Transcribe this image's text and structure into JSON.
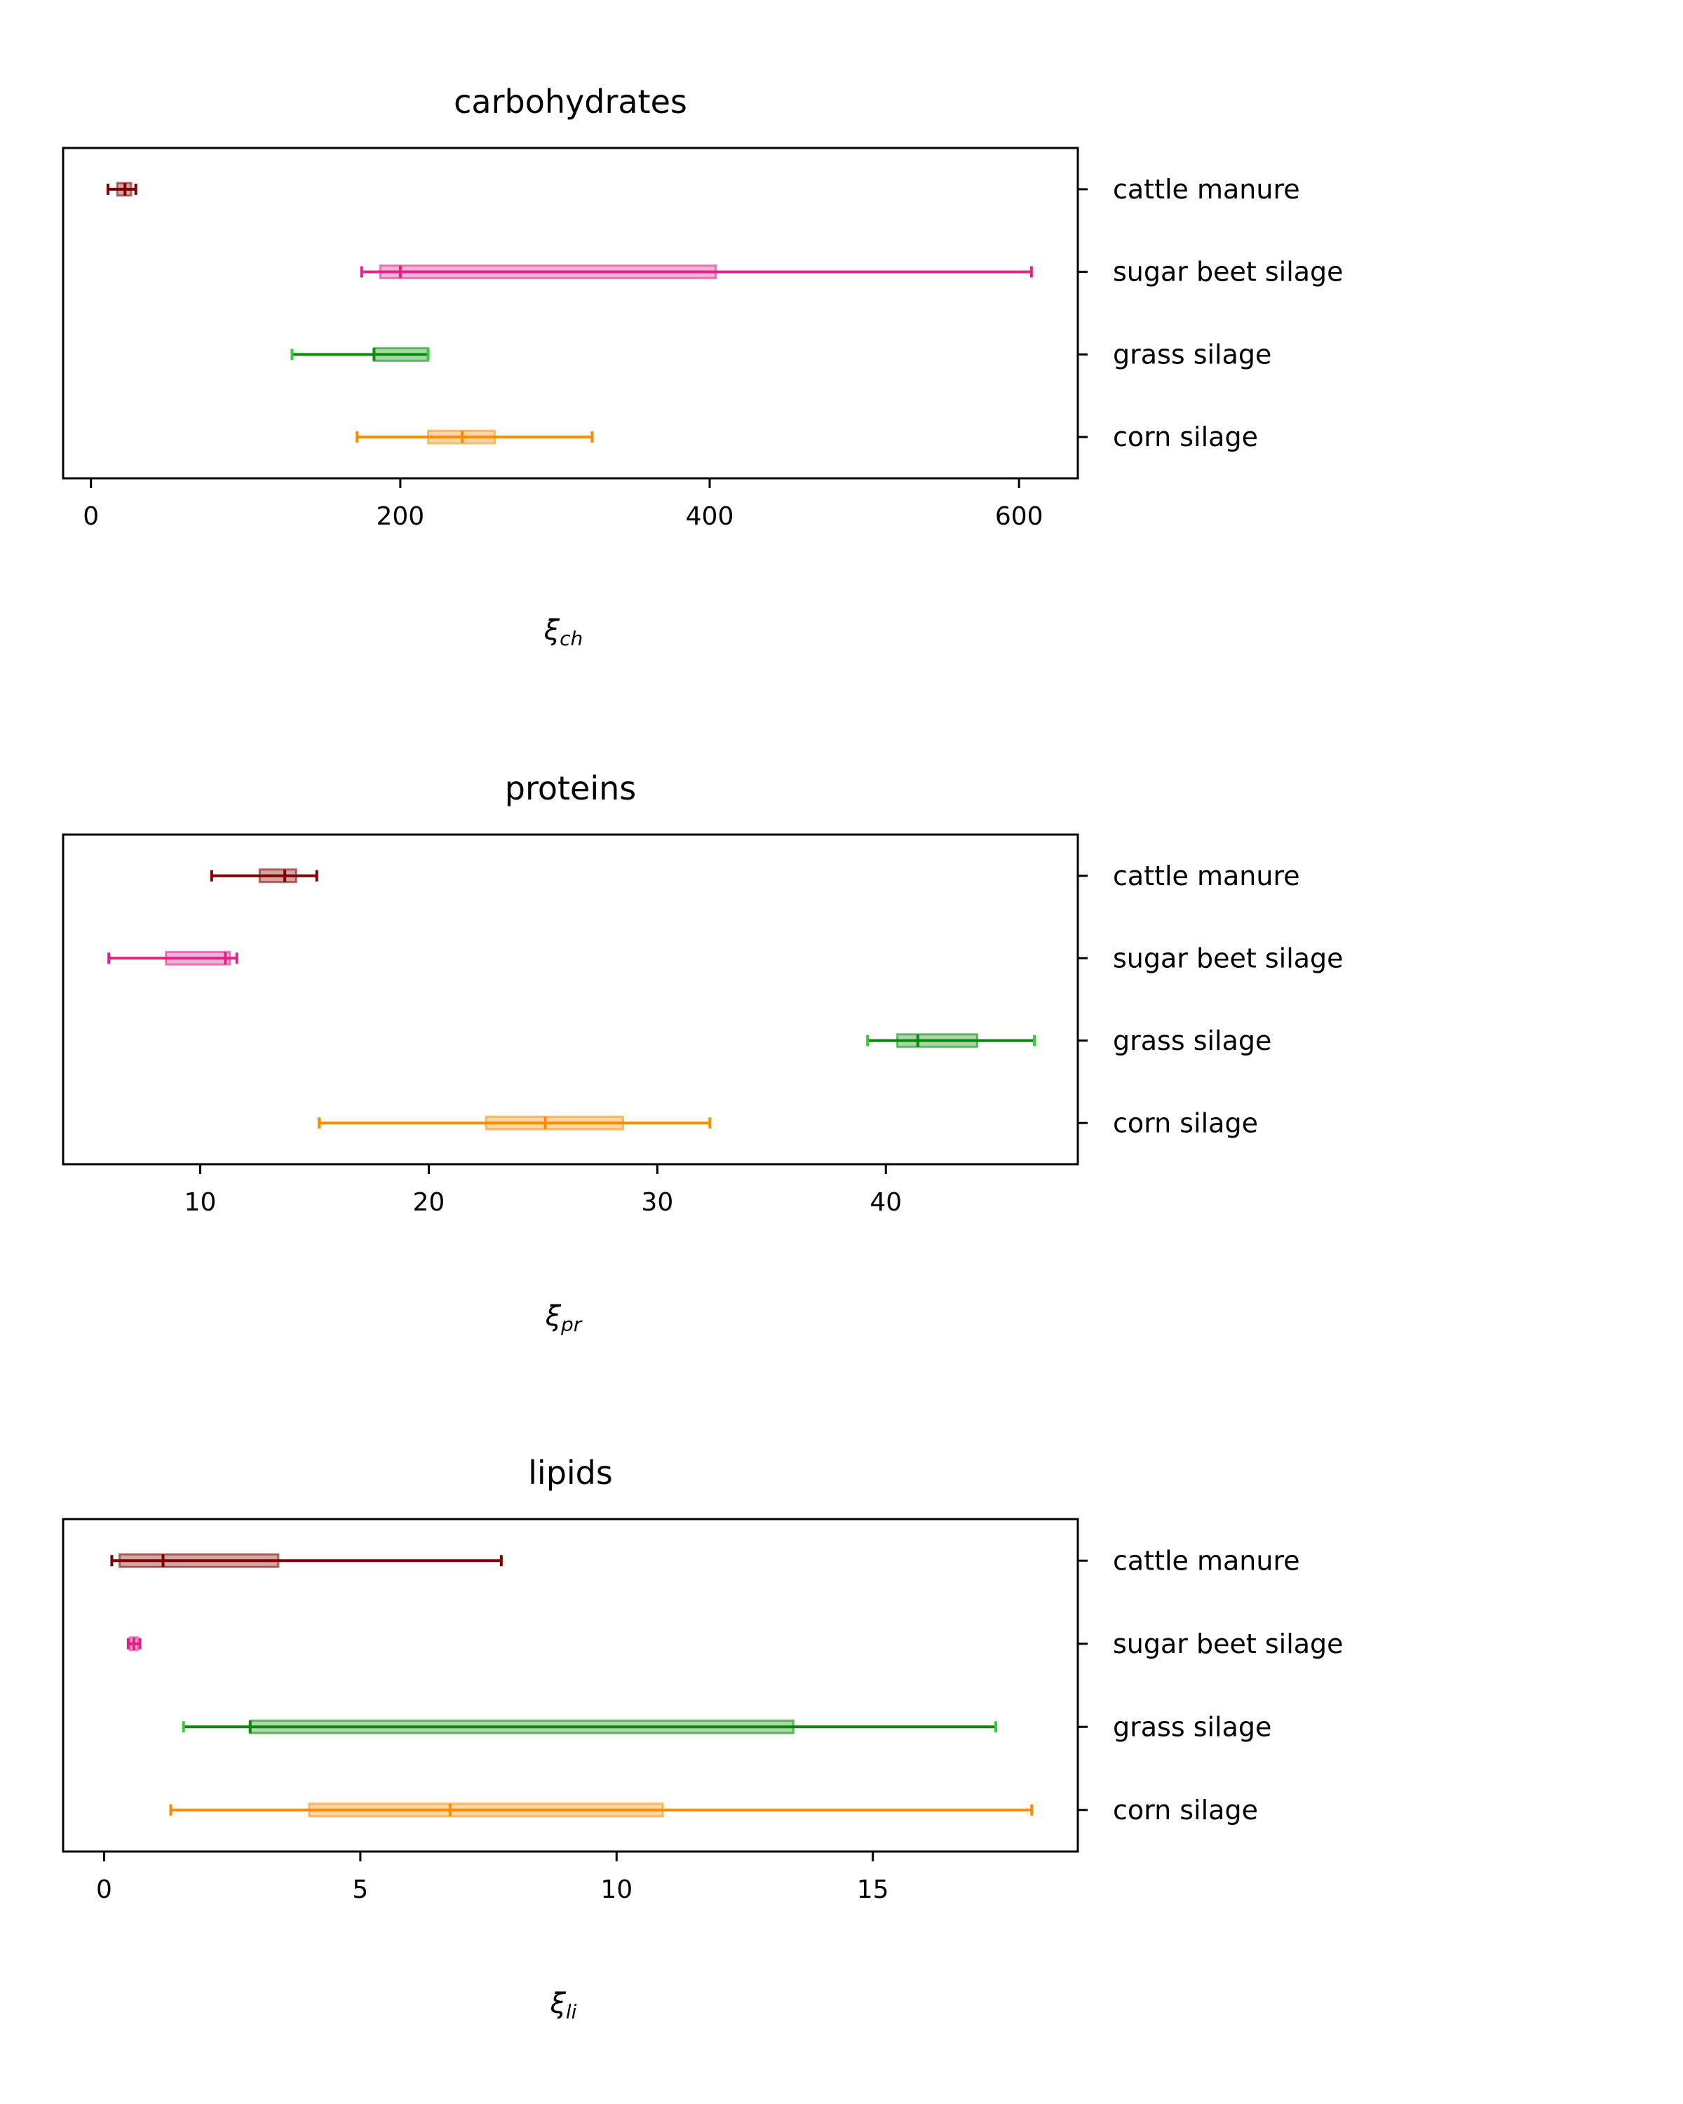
{
  "colors": {
    "cattle manure": "#800000",
    "sugar beet silage": "#e0218a",
    "grass silage": "#0a8a0a",
    "corn silage": "#ff8c00",
    "grass silage caps": "#32cd32"
  },
  "chart_data": [
    {
      "type": "boxplot-horizontal",
      "title": "carbohydrates",
      "xlabel_symbol": "ξ",
      "xlabel_subscript": "ch",
      "xlim": [
        -18,
        638
      ],
      "xticks": [
        0,
        200,
        400,
        600
      ],
      "xtick_labels": [
        "0",
        "200",
        "400",
        "600"
      ],
      "categories": [
        "cattle manure",
        "sugar beet silage",
        "grass silage",
        "corn silage"
      ],
      "series": [
        {
          "name": "cattle manure",
          "min": 11,
          "q1": 17,
          "median": 22,
          "q3": 26,
          "max": 29
        },
        {
          "name": "sugar beet silage",
          "min": 175,
          "q1": 187,
          "median": 200,
          "q3": 404,
          "max": 608
        },
        {
          "name": "grass silage",
          "min": 130,
          "q1": 183,
          "median": 183,
          "q3": 218,
          "max": 218
        },
        {
          "name": "corn silage",
          "min": 172,
          "q1": 218,
          "median": 240,
          "q3": 261,
          "max": 324
        }
      ]
    },
    {
      "type": "boxplot-horizontal",
      "title": "proteins",
      "xlabel_symbol": "ξ",
      "xlabel_subscript": "pr",
      "xlim": [
        4.0,
        48.4
      ],
      "xticks": [
        10,
        20,
        30,
        40
      ],
      "xtick_labels": [
        "10",
        "20",
        "30",
        "40"
      ],
      "categories": [
        "cattle manure",
        "sugar beet silage",
        "grass silage",
        "corn silage"
      ],
      "series": [
        {
          "name": "cattle manure",
          "min": 10.5,
          "q1": 12.6,
          "median": 13.7,
          "q3": 14.2,
          "max": 15.1
        },
        {
          "name": "sugar beet silage",
          "min": 6.0,
          "q1": 8.5,
          "median": 11.1,
          "q3": 11.3,
          "max": 11.6
        },
        {
          "name": "grass silage",
          "min": 39.2,
          "q1": 40.5,
          "median": 41.4,
          "q3": 44.0,
          "max": 46.5
        },
        {
          "name": "corn silage",
          "min": 15.2,
          "q1": 22.5,
          "median": 25.1,
          "q3": 28.5,
          "max": 32.3
        }
      ]
    },
    {
      "type": "boxplot-horizontal",
      "title": "lipids",
      "xlabel_symbol": "ξ",
      "xlabel_subscript": "li",
      "xlim": [
        -0.8,
        19.0
      ],
      "xticks": [
        0,
        5,
        10,
        15
      ],
      "xtick_labels": [
        "0",
        "5",
        "10",
        "15"
      ],
      "categories": [
        "cattle manure",
        "sugar beet silage",
        "grass silage",
        "corn silage"
      ],
      "series": [
        {
          "name": "cattle manure",
          "min": 0.15,
          "q1": 0.3,
          "median": 1.15,
          "q3": 3.4,
          "max": 7.75
        },
        {
          "name": "sugar beet silage",
          "min": 0.47,
          "q1": 0.5,
          "median": 0.58,
          "q3": 0.66,
          "max": 0.7
        },
        {
          "name": "grass silage",
          "min": 1.55,
          "q1": 2.85,
          "median": 2.85,
          "q3": 13.45,
          "max": 17.4
        },
        {
          "name": "corn silage",
          "min": 1.3,
          "q1": 4.0,
          "median": 6.75,
          "q3": 10.9,
          "max": 18.1
        }
      ]
    }
  ]
}
